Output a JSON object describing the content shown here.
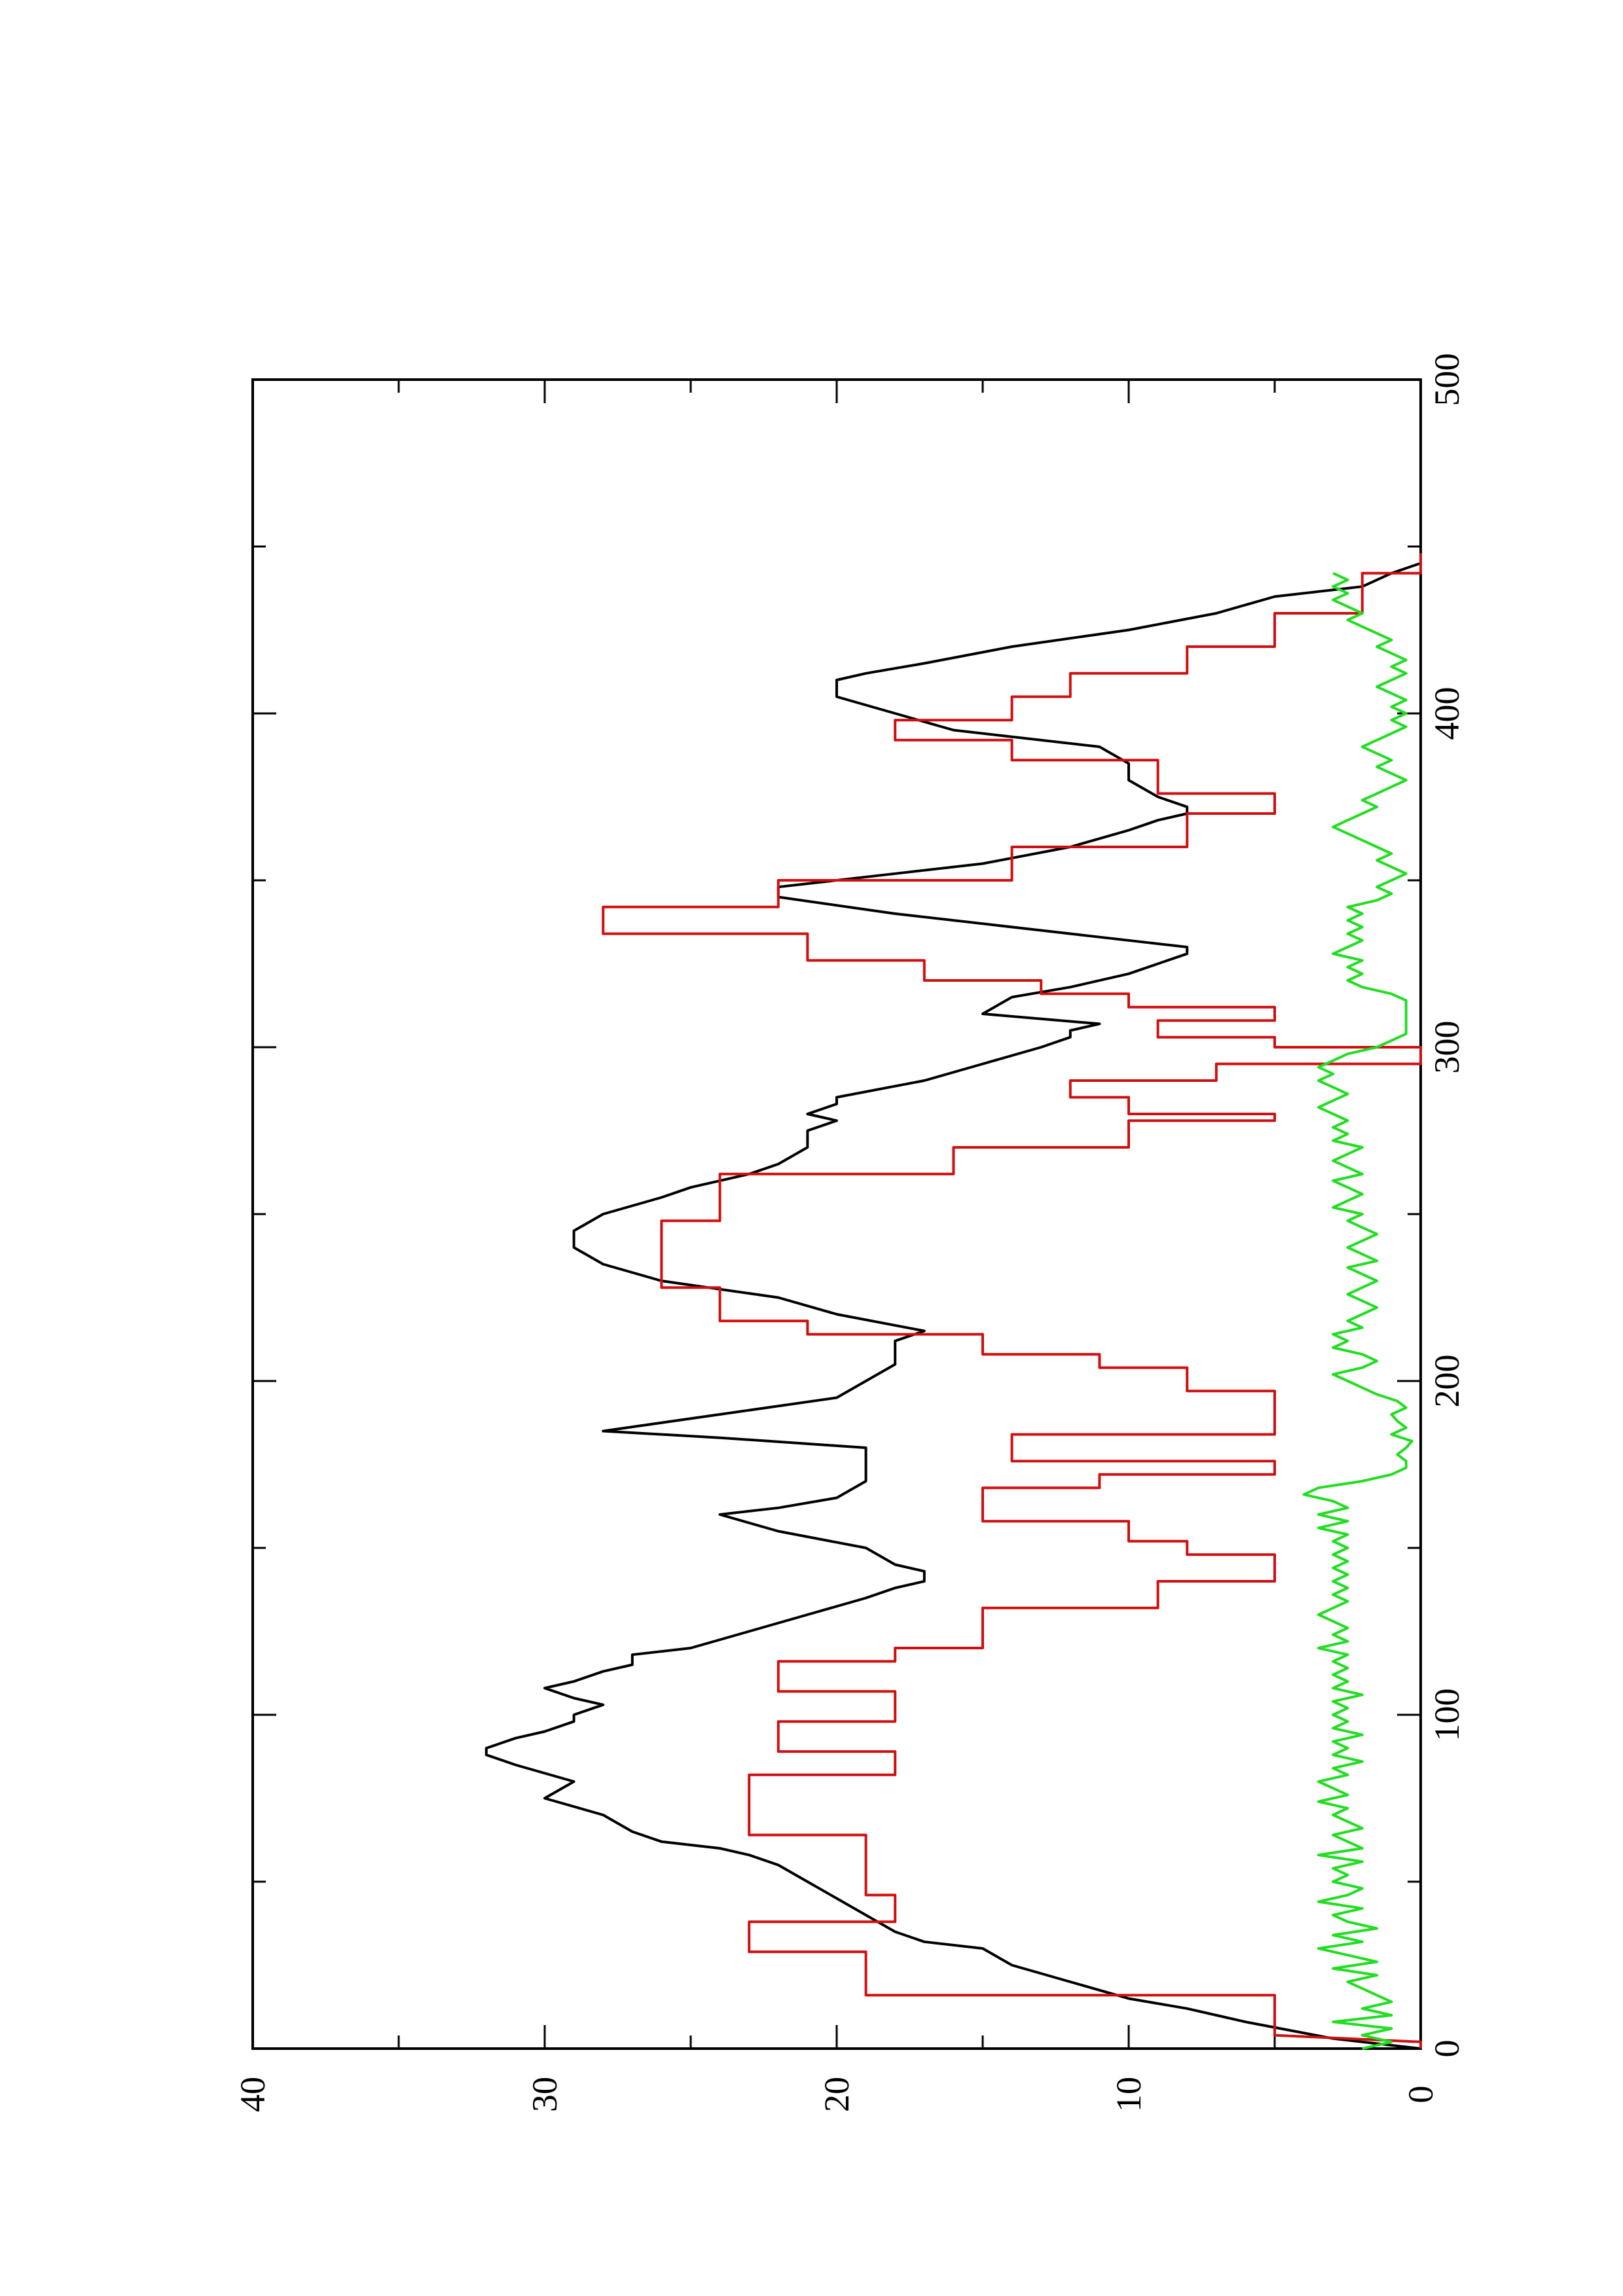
{
  "chart_data": {
    "type": "line",
    "title": "",
    "xlabel": "",
    "ylabel": "",
    "rotation": "rotated 90 degrees counter-clockwise on the page",
    "xlim": [
      0,
      500
    ],
    "ylim": [
      0,
      40
    ],
    "grid": false,
    "legend": "none",
    "x_ticks": [
      0,
      100,
      200,
      300,
      400,
      500
    ],
    "y_ticks": [
      0,
      10,
      20,
      30,
      40
    ],
    "x_ticks_minor": [
      50,
      150,
      250,
      350,
      450
    ],
    "y_ticks_minor": [
      5,
      15,
      25,
      35
    ],
    "series": [
      {
        "color": "#000000",
        "x": [
          0,
          3,
          8,
          10,
          12,
          15,
          20,
          25,
          30,
          32,
          35,
          40,
          45,
          50,
          55,
          58,
          60,
          62,
          65,
          70,
          75,
          80,
          85,
          88,
          90,
          93,
          95,
          98,
          100,
          103,
          105,
          108,
          110,
          113,
          115,
          118,
          120,
          125,
          130,
          135,
          138,
          140,
          143,
          145,
          150,
          155,
          160,
          162,
          165,
          170,
          175,
          178,
          180,
          183,
          185,
          190,
          195,
          200,
          205,
          208,
          212,
          215,
          220,
          225,
          230,
          235,
          240,
          245,
          250,
          255,
          258,
          262,
          265,
          270,
          275,
          278,
          280,
          283,
          285,
          290,
          295,
          300,
          303,
          305,
          307,
          310,
          315,
          318,
          322,
          325,
          328,
          330,
          332,
          335,
          340,
          345,
          348,
          352,
          355,
          360,
          365,
          368,
          370,
          372,
          375,
          380,
          385,
          390,
          395,
          400,
          405,
          410,
          412,
          415,
          420,
          425,
          430,
          435,
          438,
          442,
          445,
          450
        ],
        "y": [
          0,
          3,
          6,
          7,
          8,
          10,
          12,
          14,
          15,
          17,
          18,
          19,
          20,
          21,
          22,
          23,
          24,
          26,
          27,
          28,
          30,
          29,
          31,
          32,
          32,
          31,
          30,
          29,
          29,
          28,
          29,
          30,
          29,
          28,
          27,
          27,
          25,
          23,
          21,
          19,
          18,
          17,
          17,
          18,
          19,
          22,
          24,
          22,
          20,
          19,
          19,
          19,
          19,
          24,
          28,
          24,
          20,
          19,
          18,
          18,
          18,
          17,
          20,
          22,
          26,
          28,
          29,
          29,
          28,
          26,
          25,
          23,
          22,
          21,
          21,
          20,
          21,
          20,
          20,
          17,
          15,
          13,
          12,
          12,
          11,
          15,
          14,
          12,
          10,
          9,
          8,
          8,
          10,
          13,
          18,
          22,
          22,
          18,
          15,
          12,
          10,
          9,
          8,
          8,
          9,
          10,
          10,
          11,
          16,
          18,
          20,
          20,
          19,
          17,
          14,
          10,
          7,
          5,
          2,
          1,
          0,
          0
        ]
      },
      {
        "color": "#d01010",
        "x": [
          0,
          2,
          4,
          16,
          16,
          29,
          29,
          38,
          38,
          46,
          46,
          64,
          64,
          82,
          82,
          89,
          89,
          98,
          98,
          107,
          107,
          116,
          116,
          120,
          120,
          132,
          132,
          140,
          140,
          148,
          148,
          152,
          152,
          158,
          158,
          168,
          168,
          172,
          172,
          176,
          176,
          184,
          184,
          197,
          197,
          204,
          204,
          208,
          208,
          214,
          214,
          218,
          218,
          228,
          228,
          248,
          248,
          262,
          262,
          270,
          270,
          278,
          278,
          280,
          280,
          285,
          285,
          290,
          290,
          295,
          295,
          300,
          300,
          303,
          303,
          308,
          308,
          312,
          312,
          316,
          316,
          320,
          320,
          326,
          326,
          334,
          334,
          342,
          342,
          350,
          350,
          360,
          360,
          370,
          370,
          376,
          376,
          386,
          386,
          392,
          392,
          398,
          398,
          405,
          405,
          412,
          412,
          420,
          420,
          430,
          430,
          442,
          442,
          448
        ],
        "y": [
          0,
          0,
          5,
          5,
          19,
          19,
          23,
          23,
          18,
          18,
          19,
          19,
          23,
          23,
          18,
          18,
          22,
          22,
          18,
          18,
          22,
          22,
          18,
          18,
          15,
          15,
          9,
          9,
          5,
          5,
          8,
          8,
          10,
          10,
          15,
          15,
          11,
          11,
          5,
          5,
          14,
          14,
          5,
          5,
          8,
          8,
          11,
          11,
          15,
          15,
          21,
          21,
          24,
          24,
          26,
          26,
          24,
          24,
          16,
          16,
          10,
          10,
          5,
          5,
          10,
          10,
          12,
          12,
          7,
          7,
          0,
          0,
          5,
          5,
          9,
          9,
          5,
          5,
          10,
          10,
          13,
          13,
          17,
          17,
          21,
          21,
          28,
          28,
          22,
          22,
          14,
          14,
          8,
          8,
          5,
          5,
          9,
          9,
          14,
          14,
          18,
          18,
          14,
          14,
          12,
          12,
          8,
          8,
          5,
          5,
          2,
          2,
          0,
          0
        ]
      },
      {
        "color": "#22dd22",
        "x": [
          0,
          2,
          4,
          6,
          8,
          10,
          12,
          14,
          16,
          18,
          20,
          22,
          24,
          26,
          28,
          30,
          32,
          34,
          36,
          38,
          40,
          42,
          44,
          46,
          48,
          50,
          52,
          54,
          56,
          58,
          60,
          62,
          64,
          66,
          68,
          70,
          72,
          74,
          76,
          78,
          80,
          82,
          84,
          86,
          88,
          90,
          92,
          94,
          96,
          98,
          100,
          102,
          104,
          106,
          108,
          110,
          112,
          114,
          116,
          118,
          120,
          122,
          124,
          126,
          128,
          130,
          132,
          134,
          136,
          138,
          140,
          142,
          144,
          146,
          148,
          150,
          152,
          154,
          156,
          158,
          160,
          162,
          164,
          166,
          168,
          170,
          172,
          174,
          176,
          178,
          180,
          182,
          184,
          186,
          188,
          190,
          192,
          194,
          196,
          198,
          200,
          202,
          204,
          206,
          208,
          210,
          212,
          214,
          216,
          218,
          220,
          222,
          224,
          226,
          228,
          230,
          232,
          234,
          236,
          238,
          240,
          242,
          244,
          246,
          248,
          250,
          252,
          254,
          256,
          258,
          260,
          262,
          264,
          266,
          268,
          270,
          272,
          274,
          276,
          278,
          280,
          282,
          284,
          286,
          288,
          290,
          292,
          294,
          296,
          298,
          300,
          302,
          304,
          306,
          308,
          310,
          312,
          314,
          316,
          318,
          320,
          322,
          324,
          326,
          328,
          330,
          332,
          334,
          336,
          338,
          340,
          342,
          344,
          346,
          348,
          350,
          352,
          354,
          356,
          358,
          360,
          362,
          364,
          366,
          368,
          370,
          372,
          374,
          376,
          378,
          380,
          382,
          384,
          386,
          388,
          390,
          392,
          394,
          396,
          398,
          400,
          402,
          404,
          406,
          408,
          410,
          412,
          414,
          416,
          418,
          420,
          422,
          424,
          426,
          428,
          430,
          432,
          434,
          436,
          438,
          440,
          442
        ],
        "y": [
          2,
          1,
          2,
          1,
          3,
          1,
          2,
          1,
          1.5,
          2,
          2.5,
          1.5,
          3,
          1.5,
          2.5,
          3.5,
          2,
          3,
          1.5,
          2.5,
          3,
          2,
          3.5,
          2.5,
          2,
          3,
          2.5,
          3,
          2,
          3.5,
          2,
          2.5,
          3,
          2,
          2.5,
          3,
          2.5,
          3.5,
          2.5,
          3,
          3.5,
          2.5,
          3,
          2,
          3,
          2.5,
          3,
          2,
          3,
          2.5,
          3,
          2.5,
          3,
          2,
          3,
          2.5,
          3,
          2.5,
          3,
          2.5,
          3.5,
          2.5,
          3,
          2.5,
          3,
          3.5,
          3,
          2.5,
          3,
          2.5,
          3,
          2.5,
          3,
          2.5,
          3,
          2.5,
          3,
          2.5,
          3.5,
          2.5,
          3.5,
          2.5,
          3,
          4,
          3.5,
          2,
          1,
          0.5,
          0.5,
          0.8,
          0.5,
          0.3,
          1,
          0.5,
          0.8,
          1,
          0.5,
          0.8,
          1.5,
          2,
          2.5,
          3,
          2,
          1.5,
          2,
          3,
          2.5,
          3,
          2,
          2.5,
          2,
          1.5,
          2,
          2.5,
          2,
          1.5,
          2,
          2.5,
          1.5,
          2,
          2.5,
          2,
          1.5,
          2,
          2.5,
          2,
          3,
          2.5,
          2,
          2.5,
          3,
          2,
          2.5,
          3,
          2.5,
          2,
          3,
          2.5,
          3,
          2.5,
          3,
          3.5,
          3,
          2.5,
          3,
          3.5,
          3,
          3.5,
          3,
          2.5,
          1.5,
          1,
          0.5,
          0.5,
          0.5,
          0.5,
          0.5,
          0.5,
          1,
          2,
          2.5,
          2,
          2.5,
          2,
          3,
          2.5,
          2,
          2.5,
          2,
          2.5,
          2,
          2.5,
          1.5,
          1,
          1.5,
          1,
          0.5,
          1,
          1.5,
          1,
          1.5,
          2,
          2.5,
          3,
          2.5,
          2,
          1.5,
          2,
          1.5,
          1,
          0.5,
          1,
          1.5,
          1,
          1.5,
          2,
          1.5,
          1,
          0.5,
          1,
          0.5,
          1,
          0.5,
          1,
          1.5,
          1,
          0.5,
          1,
          0.5,
          1,
          1.5,
          1,
          1.5,
          2,
          2.5,
          2,
          2.5,
          3,
          2.5,
          3,
          2.5,
          3
        ]
      }
    ]
  }
}
